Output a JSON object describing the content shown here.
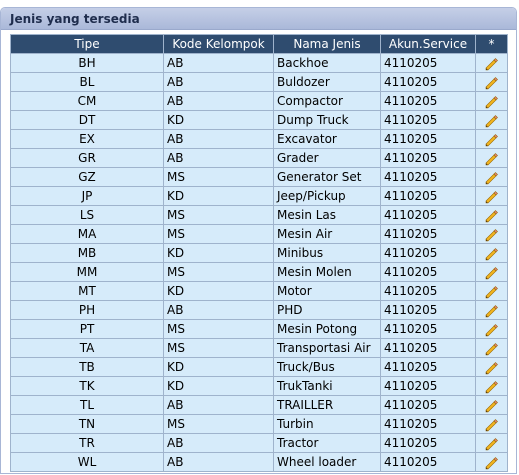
{
  "panel": {
    "title": "Jenis yang tersedia"
  },
  "table": {
    "headers": [
      "Tipe",
      "Kode Kelompok",
      "Nama Jenis",
      "Akun.Service",
      "*"
    ],
    "rows": [
      {
        "tipe": "BH",
        "kode": "AB",
        "nama": "Backhoe",
        "akun": "4110205"
      },
      {
        "tipe": "BL",
        "kode": "AB",
        "nama": "Buldozer",
        "akun": "4110205"
      },
      {
        "tipe": "CM",
        "kode": "AB",
        "nama": "Compactor",
        "akun": "4110205"
      },
      {
        "tipe": "DT",
        "kode": "KD",
        "nama": "Dump Truck",
        "akun": "4110205"
      },
      {
        "tipe": "EX",
        "kode": "AB",
        "nama": "Excavator",
        "akun": "4110205"
      },
      {
        "tipe": "GR",
        "kode": "AB",
        "nama": "Grader",
        "akun": "4110205"
      },
      {
        "tipe": "GZ",
        "kode": "MS",
        "nama": "Generator Set",
        "akun": "4110205"
      },
      {
        "tipe": "JP",
        "kode": "KD",
        "nama": "Jeep/Pickup",
        "akun": "4110205"
      },
      {
        "tipe": "LS",
        "kode": "MS",
        "nama": "Mesin Las",
        "akun": "4110205"
      },
      {
        "tipe": "MA",
        "kode": "MS",
        "nama": "Mesin Air",
        "akun": "4110205"
      },
      {
        "tipe": "MB",
        "kode": "KD",
        "nama": "Minibus",
        "akun": "4110205"
      },
      {
        "tipe": "MM",
        "kode": "MS",
        "nama": "Mesin Molen",
        "akun": "4110205"
      },
      {
        "tipe": "MT",
        "kode": "KD",
        "nama": "Motor",
        "akun": "4110205"
      },
      {
        "tipe": "PH",
        "kode": "AB",
        "nama": "PHD",
        "akun": "4110205"
      },
      {
        "tipe": "PT",
        "kode": "MS",
        "nama": "Mesin Potong",
        "akun": "4110205"
      },
      {
        "tipe": "TA",
        "kode": "MS",
        "nama": "Transportasi Air",
        "akun": "4110205"
      },
      {
        "tipe": "TB",
        "kode": "KD",
        "nama": "Truck/Bus",
        "akun": "4110205"
      },
      {
        "tipe": "TK",
        "kode": "KD",
        "nama": "TrukTanki",
        "akun": "4110205"
      },
      {
        "tipe": "TL",
        "kode": "AB",
        "nama": "TRAILLER",
        "akun": "4110205"
      },
      {
        "tipe": "TN",
        "kode": "MS",
        "nama": "Turbin",
        "akun": "4110205"
      },
      {
        "tipe": "TR",
        "kode": "AB",
        "nama": "Tractor",
        "akun": "4110205"
      },
      {
        "tipe": "WL",
        "kode": "AB",
        "nama": "Wheel loader",
        "akun": "4110205"
      }
    ],
    "edit_icon": "pencil-icon"
  },
  "colors": {
    "header_bg": "#2f4c6f",
    "row_bg": "#d6ebfa",
    "panel_header_bg": "#aab8d9"
  }
}
